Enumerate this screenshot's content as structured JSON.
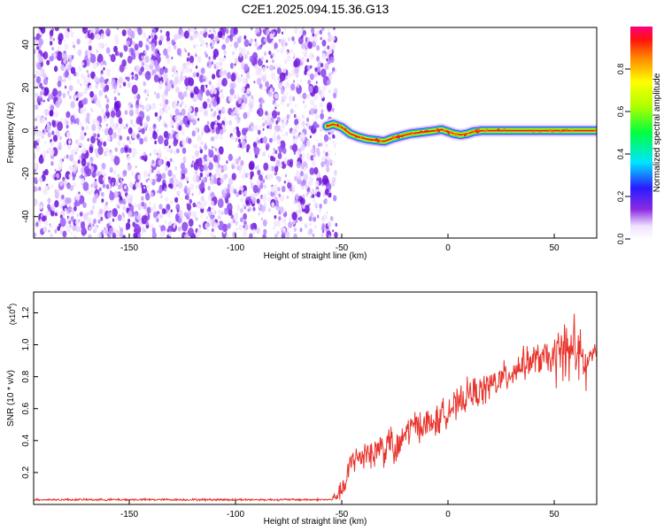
{
  "title": "C2E1.2025.094.15.36.G13",
  "colors": {
    "snr_line": "#e8342c",
    "ridge_core": "#e2231a",
    "background": "#ffffff"
  },
  "chart_data": [
    {
      "type": "heatmap",
      "xlabel": "Height of straight line (km)",
      "ylabel": "Frequency (Hz)",
      "xlim": [
        -195,
        70
      ],
      "ylim": [
        -50,
        48
      ],
      "xticks": [
        "-150",
        "-100",
        "-50",
        "0",
        "50"
      ],
      "xtick_values": [
        -150,
        -100,
        -50,
        0,
        50
      ],
      "yticks": [
        "-40",
        "-20",
        "0",
        "20",
        "40"
      ],
      "ytick_values": [
        -40,
        -20,
        0,
        20,
        40
      ],
      "noise_region_x": [
        -195,
        -55
      ],
      "noise_level": 0.2,
      "ridge_x": [
        -57,
        -54,
        -50,
        -46,
        -42,
        -38,
        -34,
        -30,
        -26,
        -22,
        -18,
        -14,
        -10,
        -6,
        -3,
        0,
        3,
        6,
        9,
        12,
        16,
        20,
        30,
        40,
        50,
        60,
        70
      ],
      "ridge_freq": [
        2,
        3,
        1.5,
        -1.5,
        -3,
        -4,
        -4.5,
        -5,
        -3.5,
        -2.5,
        -1.5,
        -1,
        -0.5,
        0,
        0.5,
        -0.5,
        -1.5,
        -2,
        -1.5,
        -0.5,
        0,
        0,
        0,
        0,
        0,
        0,
        0
      ],
      "colorbar": {
        "label": "Normalized spectral amplitude",
        "ticks": [
          "0.0",
          "0.2",
          "0.4",
          "0.6",
          "0.8"
        ],
        "tick_values": [
          0.0,
          0.2,
          0.4,
          0.6,
          0.8
        ],
        "range": [
          0,
          1
        ]
      }
    },
    {
      "type": "line",
      "xlabel": "Height of straight line (km)",
      "ylabel": "SNR (10 * v/v)",
      "y_multiplier": "(x10",
      "y_multiplier_exp": "4",
      "xlim": [
        -195,
        70
      ],
      "ylim": [
        0,
        1.33
      ],
      "xticks": [
        "-150",
        "-100",
        "-50",
        "0",
        "50"
      ],
      "xtick_values": [
        -150,
        -100,
        -50,
        0,
        50
      ],
      "yticks": [
        "0.2",
        "0.4",
        "0.6",
        "0.8",
        "1.0",
        "1.2"
      ],
      "ytick_values": [
        0.2,
        0.4,
        0.6,
        0.8,
        1.0,
        1.2
      ],
      "series": [
        {
          "x": [
            -195,
            -150,
            -100,
            -55,
            -52,
            -48,
            -45,
            -42,
            -38,
            -35,
            -32,
            -30,
            -27,
            -25,
            -20,
            -15,
            -10,
            -5,
            0,
            5,
            10,
            15,
            20,
            25,
            30,
            35,
            40,
            45,
            50,
            53,
            55,
            57,
            59,
            61,
            63,
            65,
            67,
            70
          ],
          "y": [
            0.03,
            0.03,
            0.03,
            0.03,
            0.06,
            0.12,
            0.3,
            0.28,
            0.35,
            0.3,
            0.38,
            0.33,
            0.42,
            0.3,
            0.45,
            0.5,
            0.5,
            0.52,
            0.6,
            0.62,
            0.7,
            0.7,
            0.75,
            0.78,
            0.83,
            0.88,
            0.9,
            0.92,
            0.9,
            0.95,
            1.0,
            0.9,
            1.05,
            0.92,
            0.9,
            0.85,
            0.94,
            0.95
          ]
        }
      ]
    }
  ]
}
